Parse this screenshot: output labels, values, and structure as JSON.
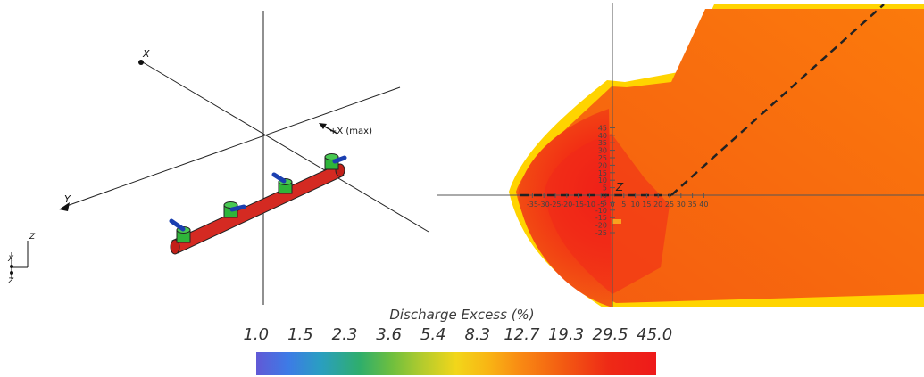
{
  "left_view": {
    "labels": {
      "x_axis": "X",
      "y_axis": "Y",
      "x_max": "+X (max)",
      "triad_z": "Z",
      "triad_x": "X",
      "triad_z2": "Z"
    }
  },
  "right_view": {
    "origin_label": "Z",
    "x_ticks": [
      "-35",
      "-30",
      "-25",
      "-20",
      "-15",
      "-10",
      "-5",
      "0",
      "5",
      "10",
      "15",
      "20",
      "25",
      "30",
      "35",
      "40"
    ],
    "y_ticks": [
      "45",
      "40",
      "35",
      "30",
      "25",
      "20",
      "15",
      "10",
      "5",
      "0",
      "-5",
      "-10",
      "-15",
      "-20",
      "-25"
    ]
  },
  "legend": {
    "title": "Discharge Excess  (%)",
    "values": [
      "1.0",
      "1.5",
      "2.3",
      "3.6",
      "5.4",
      "8.3",
      "12.7",
      "19.3",
      "29.5",
      "45.0"
    ]
  },
  "colors": {
    "pipe": "#d42a22",
    "nozzle_body": "#2fb53a",
    "nozzle_tip": "#1a3fb0",
    "plume_outer": "#ffd400",
    "plume_mid": "#ff8a00",
    "plume_core": "#f2151a"
  }
}
